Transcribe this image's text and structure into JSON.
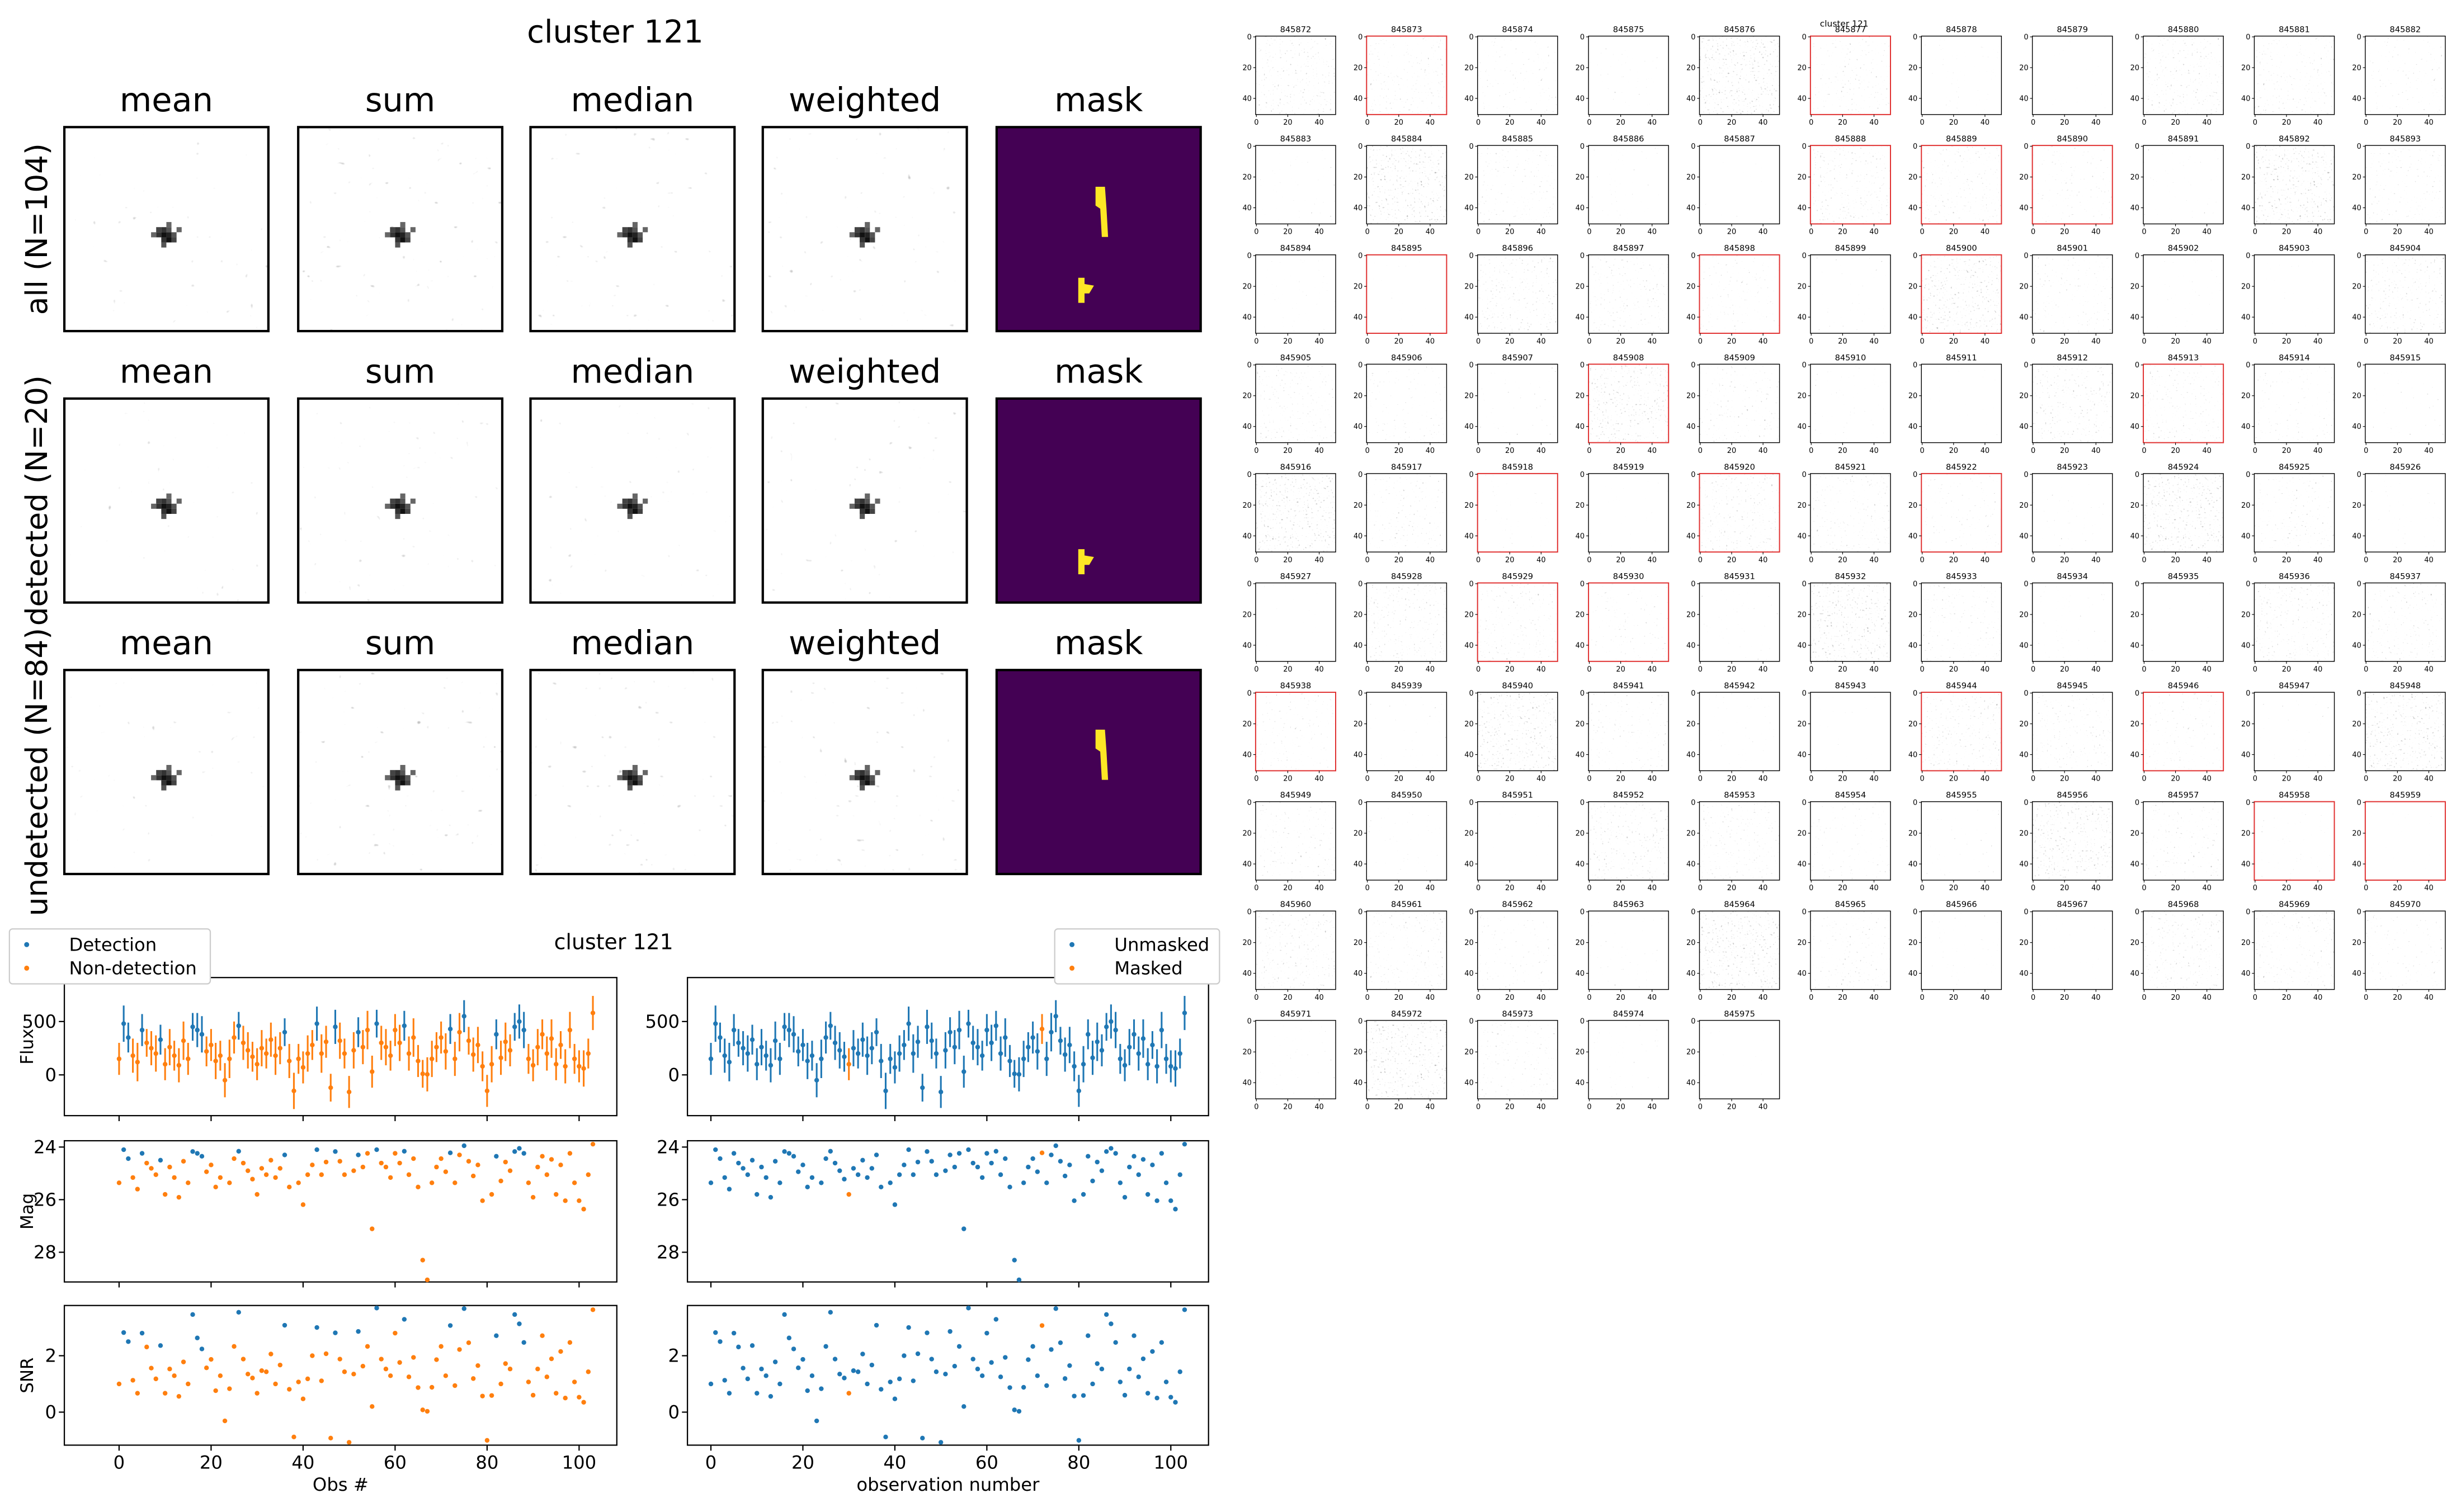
{
  "figure": {
    "title": "cluster 121",
    "columns": [
      "mean",
      "sum",
      "median",
      "weighted",
      "mask"
    ],
    "rows": [
      "all (N=104)",
      "detected (N=20)",
      "undetected (N=84)"
    ]
  },
  "thumbnails": {
    "title": "cluster 121",
    "ticks": [
      0,
      20,
      40
    ],
    "lim": [
      -0.5,
      50.5
    ],
    "ids": [
      845872,
      845873,
      845874,
      845875,
      845876,
      845877,
      845878,
      845879,
      845880,
      845881,
      845882,
      845883,
      845884,
      845885,
      845886,
      845887,
      845888,
      845889,
      845890,
      845891,
      845892,
      845893,
      845894,
      845895,
      845896,
      845897,
      845898,
      845899,
      845900,
      845901,
      845902,
      845903,
      845904,
      845905,
      845906,
      845907,
      845908,
      845909,
      845910,
      845911,
      845912,
      845913,
      845914,
      845915,
      845916,
      845917,
      845918,
      845919,
      845920,
      845921,
      845922,
      845923,
      845924,
      845925,
      845926,
      845927,
      845928,
      845929,
      845930,
      845931,
      845932,
      845933,
      845934,
      845935,
      845936,
      845937,
      845938,
      845939,
      845940,
      845941,
      845942,
      845943,
      845944,
      845945,
      845946,
      845947,
      845948,
      845949,
      845950,
      845951,
      845952,
      845953,
      845954,
      845955,
      845956,
      845957,
      845958,
      845959,
      845960,
      845961,
      845962,
      845963,
      845964,
      845965,
      845966,
      845967,
      845968,
      845969,
      845970,
      845971,
      845972,
      845973,
      845974,
      845975
    ],
    "flagged": [
      845873,
      845877,
      845888,
      845889,
      845890,
      845895,
      845898,
      845900,
      845908,
      845913,
      845918,
      845920,
      845922,
      845929,
      845930,
      845938,
      845944,
      845946,
      845958,
      845959
    ]
  },
  "chart_data": {
    "type": "scatter",
    "title": "cluster 121",
    "x": [
      0,
      1,
      2,
      3,
      4,
      5,
      6,
      7,
      8,
      9,
      10,
      11,
      12,
      13,
      14,
      15,
      16,
      17,
      18,
      19,
      20,
      21,
      22,
      23,
      24,
      25,
      26,
      27,
      28,
      29,
      30,
      31,
      32,
      33,
      34,
      35,
      36,
      37,
      38,
      39,
      40,
      41,
      42,
      43,
      44,
      45,
      46,
      47,
      48,
      49,
      50,
      51,
      52,
      53,
      54,
      55,
      56,
      57,
      58,
      59,
      60,
      61,
      62,
      63,
      64,
      65,
      66,
      67,
      68,
      69,
      70,
      71,
      72,
      73,
      74,
      75,
      76,
      77,
      78,
      79,
      80,
      81,
      82,
      83,
      84,
      85,
      86,
      87,
      88,
      89,
      90,
      91,
      92,
      93,
      94,
      95,
      96,
      97,
      98,
      99,
      100,
      101,
      102,
      103
    ],
    "xticks": [
      0,
      20,
      40,
      60,
      80,
      100
    ],
    "panels": [
      {
        "ylabel": "Flux",
        "ylim": [
          -382,
          912
        ],
        "yticks": [
          0,
          500
        ],
        "values": [
          150,
          480,
          350,
          180,
          120,
          420,
          300,
          250,
          200,
          330,
          100,
          260,
          180,
          90,
          320,
          150,
          450,
          420,
          380,
          220,
          280,
          130,
          180,
          -50,
          150,
          350,
          460,
          300,
          230,
          170,
          100,
          250,
          200,
          330,
          180,
          250,
          400,
          130,
          -150,
          150,
          70,
          200,
          280,
          480,
          200,
          310,
          -120,
          450,
          320,
          200,
          -160,
          230,
          400,
          260,
          420,
          30,
          480,
          300,
          260,
          180,
          420,
          300,
          460,
          200,
          350,
          130,
          10,
          5,
          150,
          260,
          350,
          220,
          430,
          150,
          400,
          550,
          320,
          190,
          280,
          80,
          -150,
          100,
          380,
          160,
          310,
          230,
          450,
          500,
          420,
          150,
          90,
          260,
          380,
          200,
          340,
          100,
          280,
          80,
          420,
          150,
          80,
          60,
          200,
          580
        ],
        "errors": [
          150,
          170,
          140,
          160,
          180,
          150,
          130,
          160,
          170,
          140,
          150,
          170,
          140,
          160,
          180,
          150,
          130,
          160,
          170,
          140,
          150,
          170,
          140,
          160,
          180,
          150,
          130,
          160,
          170,
          140,
          150,
          170,
          140,
          160,
          180,
          150,
          130,
          160,
          170,
          140,
          150,
          170,
          140,
          160,
          180,
          150,
          130,
          160,
          170,
          140,
          150,
          170,
          140,
          160,
          180,
          150,
          130,
          160,
          170,
          140,
          150,
          170,
          140,
          160,
          180,
          150,
          130,
          160,
          170,
          140,
          150,
          170,
          140,
          160,
          180,
          150,
          130,
          160,
          170,
          140,
          150,
          170,
          140,
          160,
          180,
          150,
          130,
          160,
          170,
          140,
          150,
          170,
          140,
          160,
          180,
          150,
          130,
          160,
          170,
          140,
          150,
          170,
          140,
          160
        ]
      },
      {
        "ylabel": "Mag",
        "ylim": [
          23.76,
          29.13
        ],
        "inverted": true,
        "yticks": [
          24,
          26,
          28
        ],
        "values": [
          25.36,
          24.1,
          24.44,
          25.16,
          25.6,
          24.24,
          24.61,
          24.81,
          25.05,
          24.5,
          25.8,
          24.76,
          25.16,
          25.91,
          24.54,
          25.36,
          24.17,
          24.24,
          24.35,
          24.94,
          24.68,
          25.52,
          25.16,
          null,
          25.36,
          24.44,
          24.16,
          24.61,
          24.9,
          25.22,
          25.8,
          24.81,
          25.05,
          24.5,
          25.16,
          24.81,
          24.3,
          25.52,
          null,
          25.36,
          26.19,
          25.05,
          24.68,
          24.1,
          25.05,
          24.57,
          null,
          24.17,
          24.54,
          25.05,
          null,
          24.9,
          24.3,
          24.76,
          24.24,
          27.11,
          24.1,
          24.61,
          24.76,
          25.16,
          24.24,
          24.61,
          24.16,
          25.05,
          24.44,
          25.52,
          28.3,
          29.05,
          25.36,
          24.76,
          24.44,
          24.94,
          24.22,
          25.36,
          24.3,
          23.95,
          24.54,
          25.1,
          24.68,
          26.04,
          null,
          25.8,
          24.35,
          25.29,
          24.57,
          24.9,
          24.17,
          24.05,
          24.24,
          25.36,
          25.91,
          24.76,
          24.35,
          25.05,
          24.47,
          25.8,
          24.68,
          26.04,
          24.24,
          25.36,
          26.04,
          26.36,
          25.05,
          23.89
        ]
      },
      {
        "ylabel": "SNR",
        "ylim": [
          -1.17,
          3.78
        ],
        "yticks": [
          0,
          2
        ],
        "values": [
          1.0,
          2.82,
          2.5,
          1.13,
          0.67,
          2.8,
          2.31,
          1.56,
          1.18,
          2.36,
          0.67,
          1.53,
          1.29,
          0.56,
          1.78,
          1.0,
          3.46,
          2.63,
          2.24,
          1.57,
          1.87,
          0.76,
          1.29,
          -0.31,
          0.83,
          2.33,
          3.54,
          1.88,
          1.35,
          1.21,
          0.67,
          1.47,
          1.43,
          2.06,
          1.0,
          1.67,
          3.08,
          0.81,
          -0.88,
          1.07,
          0.47,
          1.18,
          2.0,
          3.0,
          1.11,
          2.07,
          -0.92,
          2.81,
          1.88,
          1.43,
          -1.07,
          1.35,
          2.86,
          1.63,
          2.33,
          0.2,
          3.69,
          1.88,
          1.53,
          1.29,
          2.8,
          1.76,
          3.29,
          1.25,
          1.94,
          0.87,
          0.08,
          0.03,
          0.88,
          1.86,
          2.33,
          1.29,
          3.07,
          0.94,
          2.22,
          3.67,
          2.46,
          1.19,
          1.65,
          0.57,
          -1.0,
          0.59,
          2.71,
          1.0,
          1.72,
          1.53,
          3.46,
          3.13,
          2.47,
          1.07,
          0.6,
          1.53,
          2.71,
          1.25,
          1.89,
          0.67,
          2.15,
          0.5,
          2.47,
          1.07,
          0.53,
          0.35,
          1.43,
          3.63
        ]
      }
    ],
    "figures": [
      {
        "xlabel": "Obs #",
        "xlim": [
          -11.9,
          108.2
        ],
        "legend": "upper left",
        "series": [
          {
            "name": "Detection",
            "color": "#1f77b4",
            "x": [
              1,
              2,
              5,
              9,
              16,
              17,
              18,
              26,
              36,
              43,
              47,
              52,
              56,
              62,
              72,
              75,
              82,
              86,
              87,
              88
            ]
          },
          {
            "name": "Non-detection",
            "color": "#ff7f0e"
          }
        ]
      },
      {
        "xlabel": "observation number",
        "xlim": [
          -5.1,
          108.2
        ],
        "legend": "upper right",
        "series": [
          {
            "name": "Unmasked",
            "color": "#1f77b4"
          },
          {
            "name": "Masked",
            "color": "#ff7f0e",
            "x": [
              30,
              72
            ]
          }
        ]
      }
    ]
  }
}
